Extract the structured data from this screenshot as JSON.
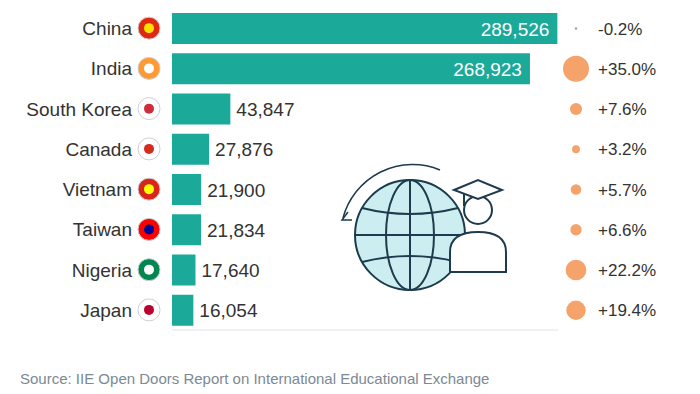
{
  "chart_data": {
    "type": "bar",
    "orientation": "horizontal",
    "categories": [
      "China",
      "India",
      "South Korea",
      "Canada",
      "Vietnam",
      "Taiwan",
      "Nigeria",
      "Japan"
    ],
    "values": [
      289526,
      268923,
      43847,
      27876,
      21900,
      21834,
      17640,
      16054
    ],
    "value_labels": [
      "289,526",
      "268,923",
      "43,847",
      "27,876",
      "21,900",
      "21,834",
      "17,640",
      "16,054"
    ],
    "changes": [
      -0.2,
      35.0,
      7.6,
      3.2,
      5.7,
      6.6,
      22.2,
      19.4
    ],
    "change_labels": [
      "-0.2%",
      "+35.0%",
      "+7.6%",
      "+3.2%",
      "+5.7%",
      "+6.6%",
      "+22.2%",
      "+19.4%"
    ],
    "color": "#1ba99a",
    "xlim": [
      0,
      290000
    ],
    "tick_labels": false,
    "grid": false,
    "data_labels": true,
    "source": "Source: IIE Open Doors Report on International Educational Exchange"
  }
}
